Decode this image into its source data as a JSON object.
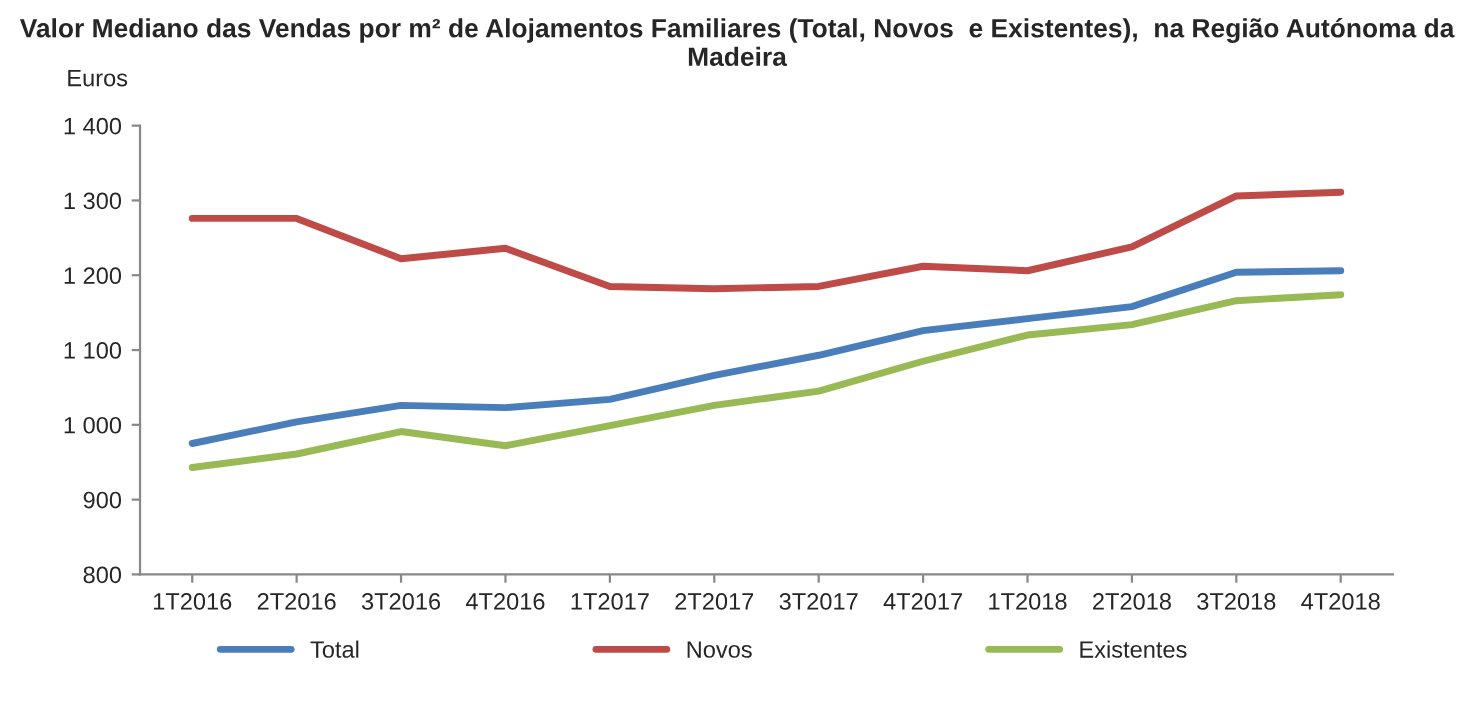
{
  "chart_data": {
    "type": "line",
    "title": "Valor Mediano das Vendas por m² de Alojamentos Familiares (Total, Novos  e Existentes),  na Região Autónoma da Madeira",
    "ylabel": "Euros",
    "categories": [
      "1T2016",
      "2T2016",
      "3T2016",
      "4T2016",
      "1T2017",
      "2T2017",
      "3T2017",
      "4T2017",
      "1T2018",
      "2T2018",
      "3T2018",
      "4T2018"
    ],
    "series": [
      {
        "name": "Total",
        "color": "#4a7ebb",
        "values": [
          975,
          1004,
          1026,
          1023,
          1034,
          1066,
          1093,
          1126,
          1142,
          1158,
          1204,
          1206
        ]
      },
      {
        "name": "Novos",
        "color": "#be4b48",
        "values": [
          1276,
          1276,
          1222,
          1236,
          1185,
          1182,
          1185,
          1212,
          1206,
          1238,
          1306,
          1311
        ]
      },
      {
        "name": "Existentes",
        "color": "#98b954",
        "values": [
          943,
          961,
          991,
          972,
          999,
          1026,
          1045,
          1085,
          1120,
          1134,
          1166,
          1174
        ]
      }
    ],
    "ylim": [
      800,
      1400
    ],
    "yticks": [
      {
        "value": 800,
        "label": "800"
      },
      {
        "value": 900,
        "label": "900"
      },
      {
        "value": 1000,
        "label": "1 000"
      },
      {
        "value": 1100,
        "label": "1 100"
      },
      {
        "value": 1200,
        "label": "1 200"
      },
      {
        "value": 1300,
        "label": "1 300"
      },
      {
        "value": 1400,
        "label": "1 400"
      }
    ],
    "grid": false,
    "legend": "bottom",
    "marker": "none",
    "line_style": "solid"
  }
}
